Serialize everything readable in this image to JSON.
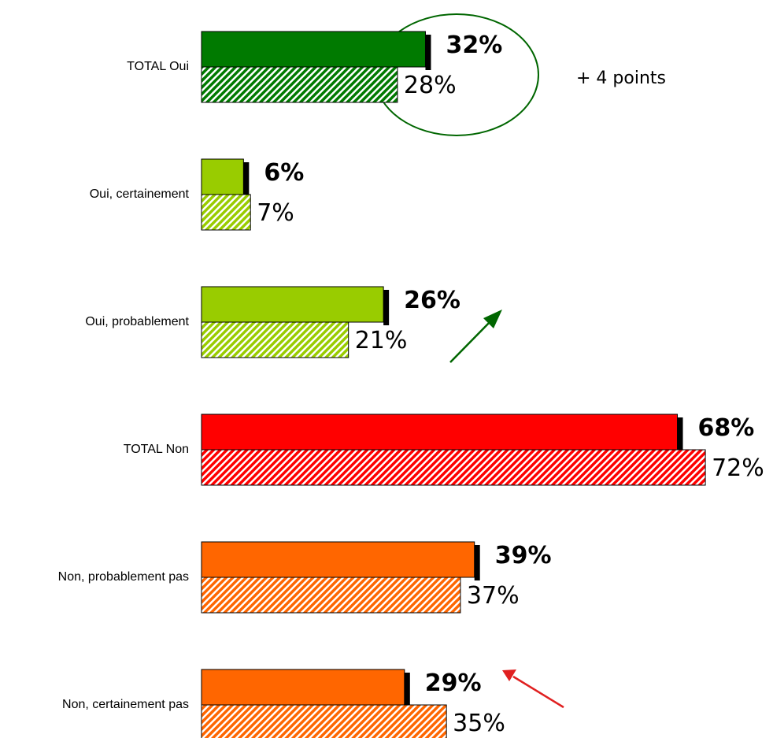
{
  "chart_data": {
    "type": "bar",
    "categories": [
      "TOTAL Oui",
      "Oui, certainement",
      "Oui, probablement",
      "TOTAL Non",
      "Non, probablement pas",
      "Non, certainement pas"
    ],
    "colors": [
      "#007a00",
      "#99cc00",
      "#99cc00",
      "#ff0000",
      "#ff6600",
      "#ff6600"
    ],
    "series": [
      {
        "values": [
          32,
          6,
          26,
          68,
          39,
          29
        ],
        "value_labels": [
          "32%",
          "6%",
          "26%",
          "68%",
          "39%",
          "29%"
        ],
        "pattern": "solid"
      },
      {
        "values": [
          28,
          7,
          21,
          72,
          37,
          35
        ],
        "value_labels": [
          "28%",
          "7%",
          "21%",
          "72%",
          "37%",
          "35%"
        ],
        "pattern": "hatch"
      }
    ],
    "annotations": [
      "+ 4 points"
    ]
  }
}
